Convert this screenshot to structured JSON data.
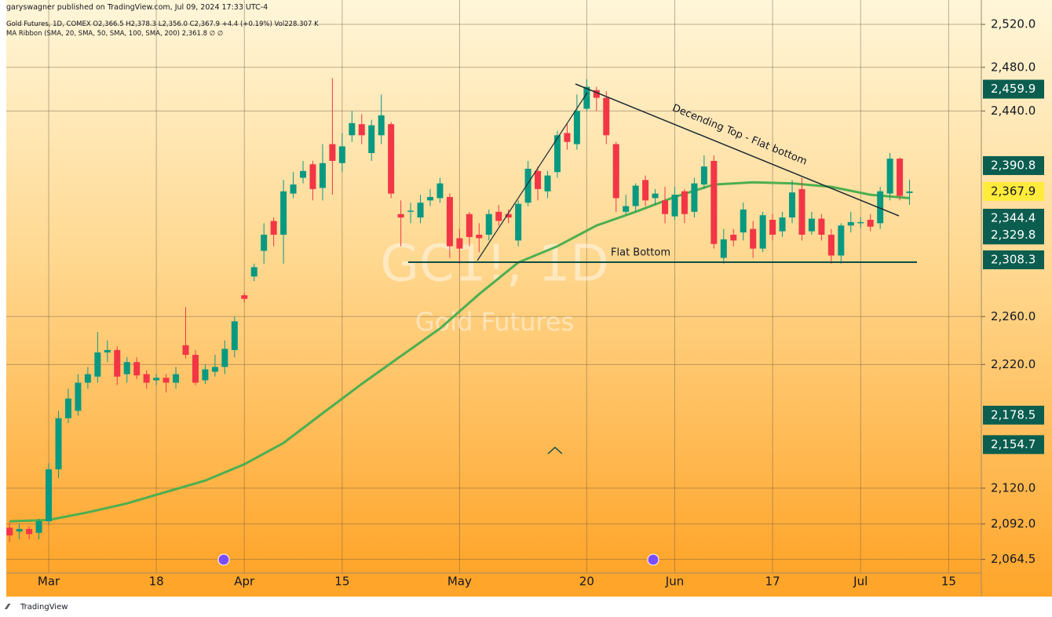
{
  "publisher": "garyswagner published on TradingView.com, Jul 09, 2024 17:33 UTC-4",
  "legend": {
    "symbol_line": "Gold Futures, 1D, COMEX  O2,366.5  H2,378.3  L2,356.0  C2,367.9  +4.4 (+0.19%)  Vol228.307 K",
    "ma_line": "MA Ribbon (SMA, 20, SMA, 50, SMA, 100, SMA, 200)  2,361.8  ∅  ∅"
  },
  "footer": "TradingView",
  "chart_data": {
    "type": "candlestick",
    "watermark": "GC1!, 1D",
    "watermark_subtitle": "Gold Futures",
    "annotations": [
      "Decending Top - Flat bottom",
      "Flat Bottom"
    ],
    "up_color": "#089981",
    "down_color": "#f23645",
    "log_scale": true,
    "grid": true,
    "xlim": [
      -0.98,
      99.34
    ],
    "xticks": [
      {
        "value": 4,
        "label": "Mar"
      },
      {
        "value": 15,
        "label": "18"
      },
      {
        "value": 24,
        "label": "Apr"
      },
      {
        "value": 34,
        "label": "15"
      },
      {
        "value": 46,
        "label": "May"
      },
      {
        "value": 59,
        "label": "20"
      },
      {
        "value": 68,
        "label": "Jun"
      },
      {
        "value": 78,
        "label": "17"
      },
      {
        "value": 87,
        "label": "Jul"
      },
      {
        "value": 96,
        "label": "15"
      }
    ],
    "ylim": [
      2054,
      2543
    ],
    "yticks": [
      {
        "value": 2520,
        "label": "2,520.0"
      },
      {
        "value": 2480,
        "label": "2,480.0"
      },
      {
        "value": 2440,
        "label": "2,440.0"
      },
      {
        "value": 2260,
        "label": "2,260.0"
      },
      {
        "value": 2220,
        "label": "2,220.0"
      },
      {
        "value": 2120,
        "label": "2,120.0"
      },
      {
        "value": 2092,
        "label": "2,092.0"
      },
      {
        "value": 2064.5,
        "label": "2,064.5"
      }
    ],
    "price_labels": [
      {
        "value": 2459.9,
        "label": "2,459.9",
        "color": "#0b5e4f"
      },
      {
        "value": 2390.8,
        "label": "2,390.8",
        "color": "#0b5e4f"
      },
      {
        "value": 2367.9,
        "label": "2,367.9",
        "color": "#ffeb3b"
      },
      {
        "value": 2344.4,
        "label": "2,344.4",
        "color": "#0b5e4f"
      },
      {
        "value": 2329.8,
        "label": "2,329.8",
        "color": "#0b5e4f"
      },
      {
        "value": 2308.3,
        "label": "2,308.3",
        "color": "#0b5e4f"
      },
      {
        "value": 2178.5,
        "label": "2,178.5",
        "color": "#0b5e4f"
      },
      {
        "value": 2154.7,
        "label": "2,154.7",
        "color": "#0b5e4f"
      }
    ],
    "open": [
      2089,
      2086,
      2088,
      2085,
      2094,
      2135,
      2176,
      2182,
      2205,
      2210,
      2230,
      2232,
      2212,
      2222,
      2212,
      2207,
      2209,
      2205,
      2236,
      2228,
      2207,
      2214,
      2218,
      2232,
      2278,
      2294,
      2316,
      2342,
      2330,
      2366,
      2380,
      2392,
      2371,
      2410,
      2393,
      2418,
      2428,
      2402,
      2418,
      2428,
      2348,
      2350,
      2345,
      2360,
      2362,
      2363,
      2327,
      2348,
      2330,
      2330,
      2350,
      2348,
      2325,
      2358,
      2386,
      2368,
      2385,
      2420,
      2410,
      2442,
      2459,
      2452,
      2410,
      2350,
      2355,
      2378,
      2362,
      2360,
      2346,
      2368,
      2350,
      2374,
      2395,
      2310,
      2330,
      2332,
      2335,
      2318,
      2343,
      2333,
      2345,
      2370,
      2333,
      2344,
      2330,
      2312,
      2338,
      2340,
      2343,
      2340,
      2366,
      2397,
      2366.5
    ],
    "high": [
      2093,
      2092,
      2090,
      2096,
      2140,
      2182,
      2200,
      2212,
      2218,
      2247,
      2240,
      2235,
      2226,
      2226,
      2215,
      2212,
      2212,
      2218,
      2268,
      2232,
      2220,
      2228,
      2240,
      2260,
      2280,
      2305,
      2340,
      2345,
      2378,
      2385,
      2395,
      2395,
      2410,
      2470,
      2420,
      2440,
      2437,
      2432,
      2455,
      2430,
      2360,
      2358,
      2365,
      2370,
      2380,
      2366,
      2335,
      2350,
      2340,
      2352,
      2356,
      2352,
      2360,
      2395,
      2390,
      2386,
      2422,
      2428,
      2455,
      2469,
      2462,
      2458,
      2412,
      2365,
      2375,
      2382,
      2370,
      2372,
      2372,
      2370,
      2380,
      2400,
      2400,
      2335,
      2335,
      2358,
      2342,
      2350,
      2348,
      2350,
      2378,
      2380,
      2350,
      2348,
      2335,
      2340,
      2350,
      2345,
      2348,
      2372,
      2402,
      2398,
      2378.3
    ],
    "low": [
      2078,
      2080,
      2080,
      2080,
      2091,
      2128,
      2172,
      2178,
      2200,
      2205,
      2222,
      2203,
      2205,
      2208,
      2200,
      2203,
      2197,
      2200,
      2225,
      2203,
      2204,
      2210,
      2212,
      2226,
      2272,
      2290,
      2305,
      2320,
      2305,
      2362,
      2375,
      2360,
      2360,
      2365,
      2385,
      2412,
      2410,
      2395,
      2410,
      2362,
      2320,
      2340,
      2340,
      2355,
      2358,
      2310,
      2305,
      2320,
      2315,
      2325,
      2338,
      2340,
      2320,
      2355,
      2360,
      2362,
      2380,
      2405,
      2405,
      2440,
      2440,
      2410,
      2350,
      2348,
      2350,
      2355,
      2356,
      2340,
      2343,
      2340,
      2345,
      2370,
      2318,
      2305,
      2320,
      2325,
      2310,
      2315,
      2325,
      2328,
      2340,
      2325,
      2330,
      2325,
      2305,
      2305,
      2332,
      2336,
      2333,
      2335,
      2360,
      2360,
      2356
    ],
    "close": [
      2083,
      2088,
      2084,
      2094,
      2135,
      2176,
      2192,
      2205,
      2212,
      2230,
      2232,
      2210,
      2222,
      2211,
      2205,
      2209,
      2205,
      2212,
      2228,
      2205,
      2216,
      2218,
      2233,
      2256,
      2275,
      2302,
      2330,
      2330,
      2368,
      2374,
      2386,
      2370,
      2393,
      2395,
      2408,
      2429,
      2418,
      2427,
      2436,
      2366,
      2345,
      2351,
      2358,
      2363,
      2375,
      2320,
      2318,
      2328,
      2327,
      2348,
      2342,
      2345,
      2357,
      2388,
      2370,
      2382,
      2418,
      2412,
      2440,
      2462,
      2452,
      2418,
      2362,
      2355,
      2373,
      2360,
      2366,
      2348,
      2365,
      2348,
      2375,
      2390,
      2322,
      2326,
      2325,
      2352,
      2318,
      2347,
      2330,
      2345,
      2367,
      2330,
      2344,
      2330,
      2312,
      2338,
      2341,
      2341,
      2337,
      2368,
      2397,
      2364,
      2367.9
    ],
    "ma": {
      "color": "#4caf50",
      "x": [
        0,
        4,
        8,
        12,
        16,
        20,
        24,
        28,
        32,
        36,
        40,
        44,
        48,
        52,
        56,
        60,
        64,
        68,
        72,
        76,
        80,
        84,
        88,
        92
      ],
      "values": [
        2094,
        2095,
        2101,
        2108,
        2117,
        2126,
        2139,
        2156,
        2180,
        2204,
        2227,
        2250,
        2279,
        2306,
        2320,
        2338,
        2350,
        2363,
        2374,
        2376,
        2375,
        2372,
        2365,
        2362
      ]
    }
  }
}
